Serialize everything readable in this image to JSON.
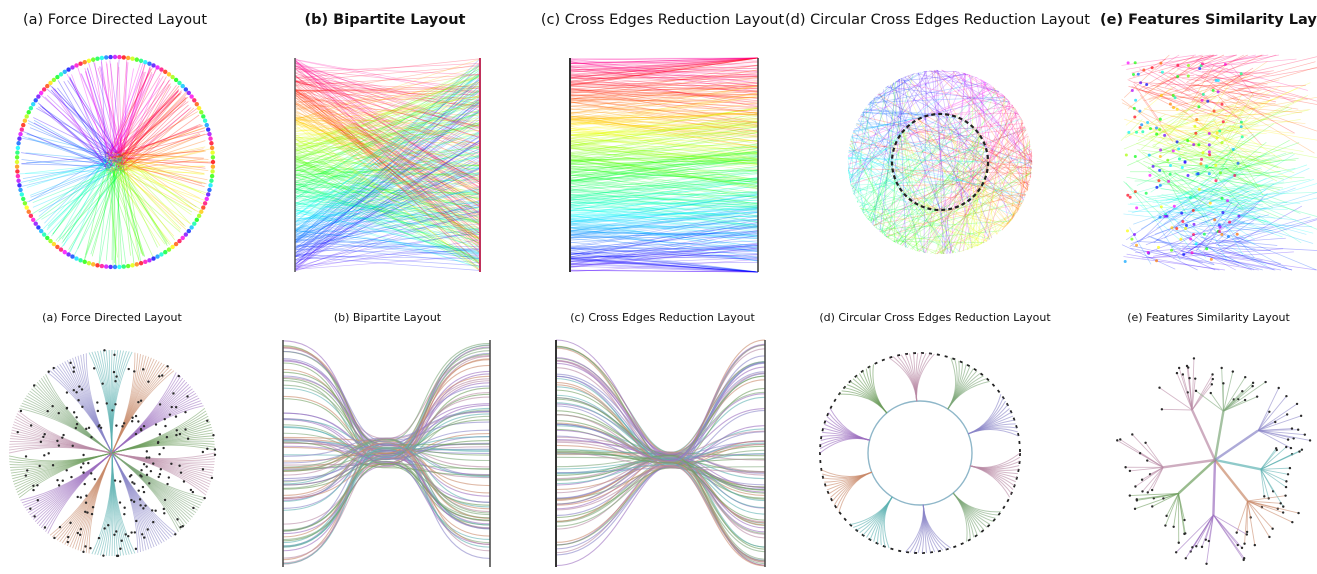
{
  "figure": {
    "top_row": [
      {
        "id": "a",
        "title": "(a) Force Directed Layout",
        "bold": false,
        "kind": "radial-dense"
      },
      {
        "id": "b",
        "title": "(b) Bipartite Layout",
        "bold": true,
        "kind": "bipartite-dense"
      },
      {
        "id": "c",
        "title": "(c) Cross Edges Reduction Layout",
        "bold": false,
        "kind": "cross-dense"
      },
      {
        "id": "d",
        "title": "(d) Circular Cross Edges Reduction Layout",
        "bold": false,
        "kind": "circular-dense"
      },
      {
        "id": "e",
        "title": "(e) Features Similarity Layout",
        "bold": true,
        "kind": "similarity-dense"
      }
    ],
    "bottom_row": [
      {
        "id": "a",
        "title": "(a) Force Directed Layout",
        "kind": "radial-bundled"
      },
      {
        "id": "b",
        "title": "(b) Bipartite Layout",
        "kind": "bipartite-bundled"
      },
      {
        "id": "c",
        "title": "(c) Cross Edges Reduction Layout",
        "kind": "cross-bundled"
      },
      {
        "id": "d",
        "title": "(d) Circular Cross Edges Reduction Layout",
        "kind": "circular-bundled"
      },
      {
        "id": "e",
        "title": "(e) Features Similarity Layout",
        "kind": "tree-bundled"
      }
    ]
  },
  "colors": {
    "background": "#ffffff",
    "node": "#2b2b2b",
    "edge_palette": "hue-rainbow",
    "bundled_palette": [
      "#b98aa5",
      "#7fa87a",
      "#8a86c8",
      "#5fb3b3",
      "#c98a6a",
      "#9c6fbf",
      "#6f9f5f"
    ]
  }
}
